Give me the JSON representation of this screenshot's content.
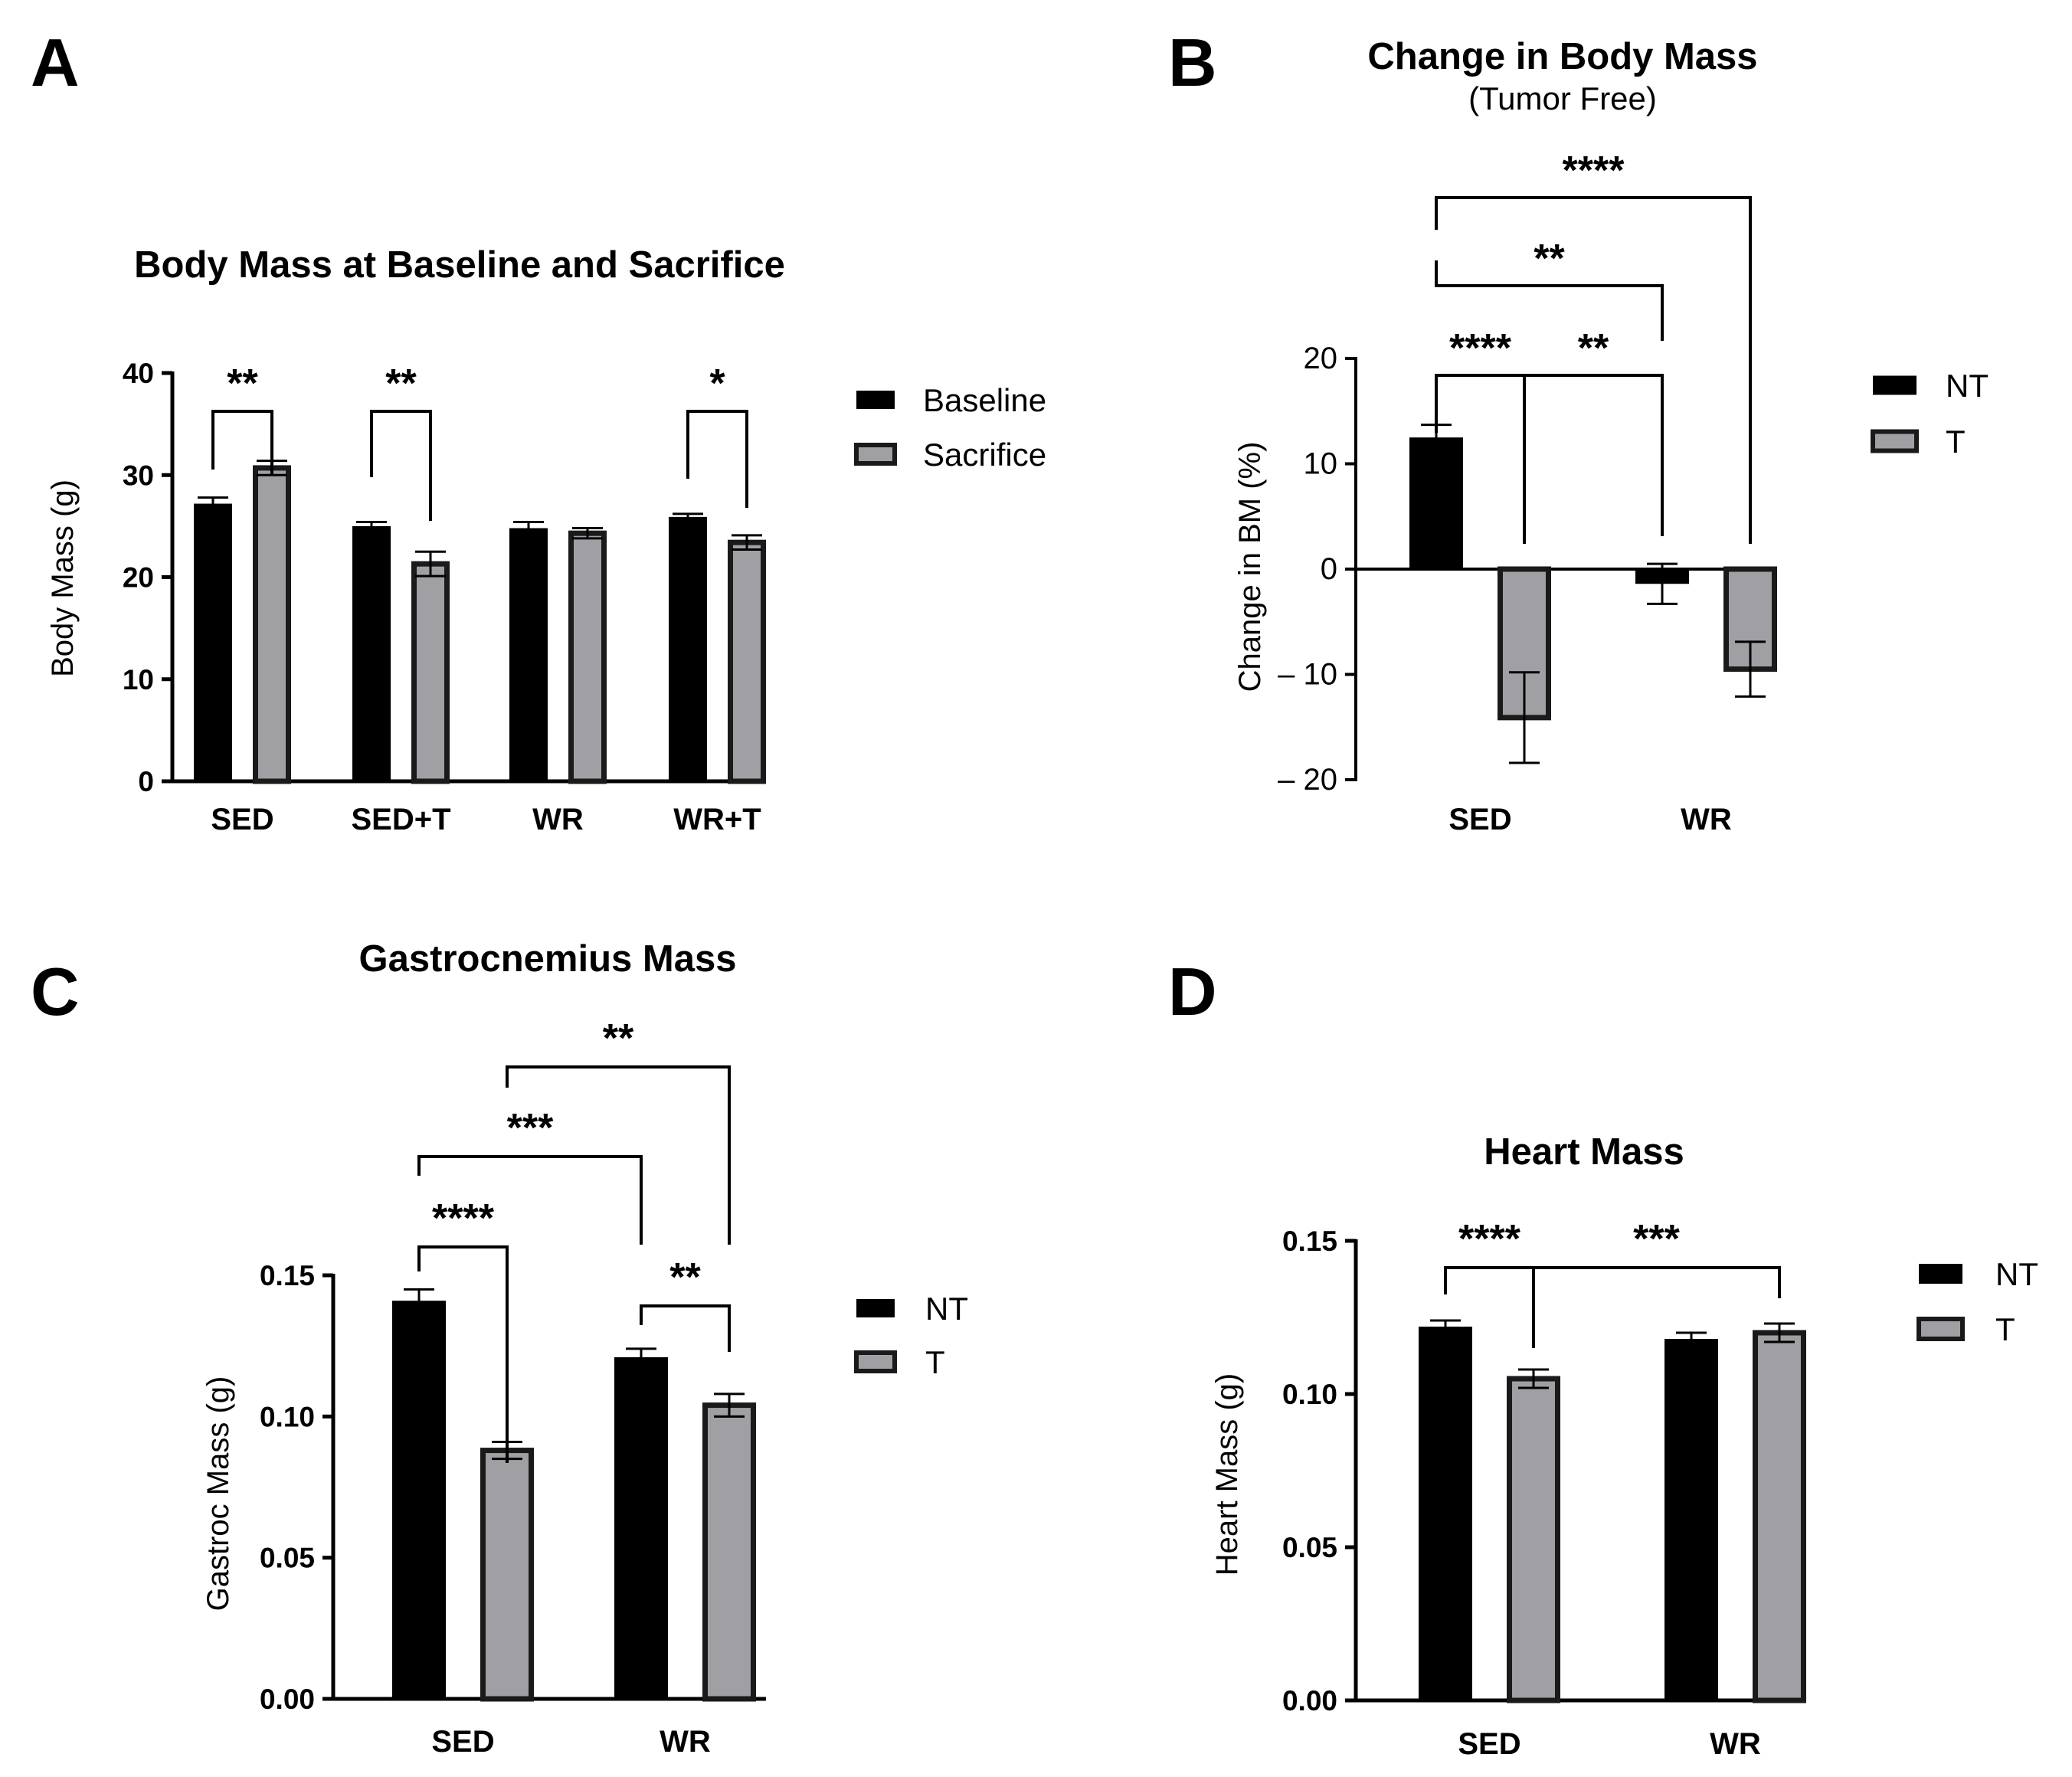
{
  "colors": {
    "baseline_fill": "#000000",
    "treated_fill": "#a0a0a4",
    "treated_edge": "#1a1a1a",
    "axis": "#000000"
  },
  "chart_data": [
    {
      "panel": "A",
      "type": "bar",
      "title": "Body Mass at Baseline and Sacrifice",
      "xlabel": "",
      "ylabel": "Body Mass (g)",
      "ylim": [
        0,
        40
      ],
      "yticks": [
        0,
        10,
        20,
        30,
        40
      ],
      "ytick_labels": [
        "0",
        "10",
        "20",
        "30",
        "40"
      ],
      "categories": [
        "SED",
        "SED+T",
        "WR",
        "WR+T"
      ],
      "series": [
        {
          "name": "Baseline",
          "values": [
            27.2,
            25.0,
            24.8,
            25.9
          ],
          "errors": [
            0.6,
            0.4,
            0.6,
            0.3
          ]
        },
        {
          "name": "Sacrifice",
          "values": [
            30.7,
            21.3,
            24.3,
            23.4
          ],
          "errors": [
            0.7,
            1.2,
            0.5,
            0.7
          ]
        }
      ],
      "legend": {
        "position": "right",
        "entries": [
          "Baseline",
          "Sacrifice"
        ]
      },
      "significance": [
        {
          "from": [
            0,
            0
          ],
          "to": [
            0,
            1
          ],
          "label": "**"
        },
        {
          "from": [
            1,
            0
          ],
          "to": [
            1,
            1
          ],
          "label": "**"
        },
        {
          "from": [
            3,
            0
          ],
          "to": [
            3,
            1
          ],
          "label": "*"
        }
      ]
    },
    {
      "panel": "B",
      "type": "bar",
      "title": "Change in Body Mass",
      "subtitle": "(Tumor Free)",
      "xlabel": "",
      "ylabel": "Change in BM (%)",
      "ylim": [
        -20,
        20
      ],
      "yticks": [
        -20,
        -10,
        0,
        10,
        20
      ],
      "ytick_labels": [
        "– 20",
        "– 10",
        "0",
        "10",
        "20"
      ],
      "categories": [
        "SED",
        "WR"
      ],
      "series": [
        {
          "name": "NT",
          "values": [
            12.5,
            -1.4
          ],
          "errors": [
            1.2,
            1.9
          ]
        },
        {
          "name": "T",
          "values": [
            -14.1,
            -9.5
          ],
          "errors": [
            4.3,
            2.6
          ]
        }
      ],
      "legend": {
        "position": "right",
        "entries": [
          "NT",
          "T"
        ]
      },
      "significance": [
        {
          "from": [
            0,
            0
          ],
          "to": [
            0,
            1
          ],
          "label": "****"
        },
        {
          "from": [
            0,
            1
          ],
          "to": [
            1,
            0
          ],
          "label": "**"
        },
        {
          "from": [
            0,
            0
          ],
          "to": [
            1,
            0
          ],
          "label": "**"
        },
        {
          "from": [
            0,
            0
          ],
          "to": [
            1,
            1
          ],
          "label": "****"
        }
      ]
    },
    {
      "panel": "C",
      "type": "bar",
      "title": "Gastrocnemius Mass",
      "xlabel": "",
      "ylabel": "Gastroc Mass (g)",
      "ylim": [
        0,
        0.15
      ],
      "yticks": [
        0,
        0.05,
        0.1,
        0.15
      ],
      "ytick_labels": [
        "0.00",
        "0.05",
        "0.10",
        "0.15"
      ],
      "categories": [
        "SED",
        "WR"
      ],
      "series": [
        {
          "name": "NT",
          "values": [
            0.141,
            0.121
          ],
          "errors": [
            0.004,
            0.003
          ]
        },
        {
          "name": "T",
          "values": [
            0.088,
            0.104
          ],
          "errors": [
            0.003,
            0.004
          ]
        }
      ],
      "legend": {
        "position": "right",
        "entries": [
          "NT",
          "T"
        ]
      },
      "significance": [
        {
          "from": [
            0,
            0
          ],
          "to": [
            0,
            1
          ],
          "label": "****"
        },
        {
          "from": [
            1,
            0
          ],
          "to": [
            1,
            1
          ],
          "label": "**"
        },
        {
          "from": [
            0,
            0
          ],
          "to": [
            1,
            0
          ],
          "label": "***"
        },
        {
          "from": [
            0,
            1
          ],
          "to": [
            1,
            1
          ],
          "label": "**"
        }
      ]
    },
    {
      "panel": "D",
      "type": "bar",
      "title": "Heart Mass",
      "xlabel": "",
      "ylabel": "Heart Mass (g)",
      "ylim": [
        0,
        0.15
      ],
      "yticks": [
        0,
        0.05,
        0.1,
        0.15
      ],
      "ytick_labels": [
        "0.00",
        "0.05",
        "0.10",
        "0.15"
      ],
      "categories": [
        "SED",
        "WR"
      ],
      "series": [
        {
          "name": "NT",
          "values": [
            0.122,
            0.118
          ],
          "errors": [
            0.002,
            0.002
          ]
        },
        {
          "name": "T",
          "values": [
            0.105,
            0.12
          ],
          "errors": [
            0.003,
            0.003
          ]
        }
      ],
      "legend": {
        "position": "right",
        "entries": [
          "NT",
          "T"
        ]
      },
      "significance": [
        {
          "from": [
            0,
            0
          ],
          "to": [
            0,
            1
          ],
          "label": "****"
        },
        {
          "from": [
            0,
            1
          ],
          "to": [
            1,
            1
          ],
          "label": "***"
        }
      ]
    }
  ]
}
